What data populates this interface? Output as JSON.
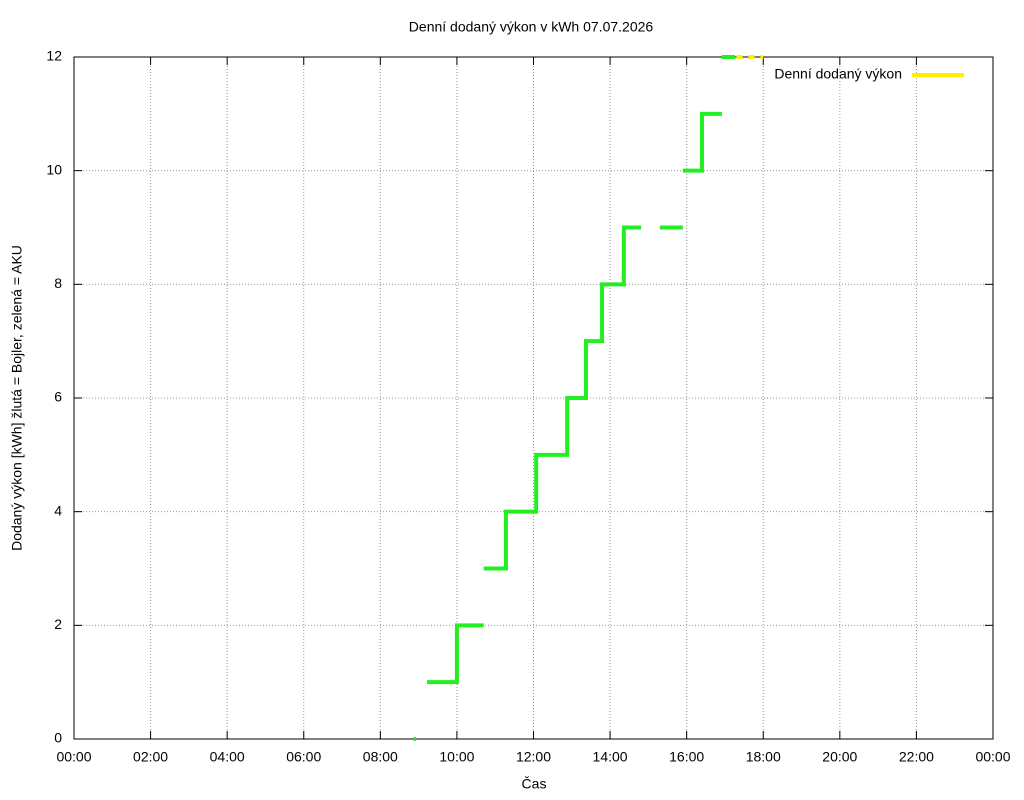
{
  "chart_data": {
    "type": "line",
    "title": "Denní dodaný výkon v kWh 07.07.2026",
    "x_label": "Čas",
    "y_label": "Dodaný výkon [kWh]  žlutá = Bojler, zelená = AKU",
    "xlim": [
      0,
      24
    ],
    "xticks": [
      {
        "value": 0,
        "label": "00:00"
      },
      {
        "value": 2,
        "label": "02:00"
      },
      {
        "value": 4,
        "label": "04:00"
      },
      {
        "value": 6,
        "label": "06:00"
      },
      {
        "value": 8,
        "label": "08:00"
      },
      {
        "value": 10,
        "label": "10:00"
      },
      {
        "value": 12,
        "label": "12:00"
      },
      {
        "value": 14,
        "label": "14:00"
      },
      {
        "value": 16,
        "label": "16:00"
      },
      {
        "value": 18,
        "label": "18:00"
      },
      {
        "value": 20,
        "label": "20:00"
      },
      {
        "value": 22,
        "label": "22:00"
      },
      {
        "value": 24,
        "label": "00:00"
      }
    ],
    "ylim": [
      0,
      12
    ],
    "yticks": [
      0,
      2,
      4,
      6,
      8,
      10,
      12
    ],
    "grid": true,
    "legend": "top-right",
    "series": [
      {
        "color": "#22ee22",
        "x": [
          8.87,
          8.93,
          null,
          9.22,
          10.0,
          10.0,
          10.7,
          null,
          10.7,
          11.28,
          11.28,
          12.07,
          12.07,
          12.88,
          12.88,
          13.37,
          13.37,
          13.79,
          13.79,
          14.36,
          14.36,
          14.81,
          null,
          15.3,
          15.9,
          null,
          15.9,
          16.4,
          16.4,
          16.92,
          null,
          16.92,
          17.26
        ],
        "values": [
          0,
          0,
          null,
          1,
          1,
          2,
          2,
          null,
          3,
          3,
          4,
          4,
          5,
          5,
          6,
          6,
          7,
          7,
          8,
          8,
          9,
          9,
          null,
          9,
          9,
          null,
          10,
          10,
          11,
          11,
          null,
          12,
          12
        ]
      },
      {
        "name": "Denní dodaný výkon",
        "color": "#ffee00",
        "dashed": true,
        "x": [
          17.3,
          18.0
        ],
        "values": [
          12,
          12
        ]
      }
    ]
  }
}
